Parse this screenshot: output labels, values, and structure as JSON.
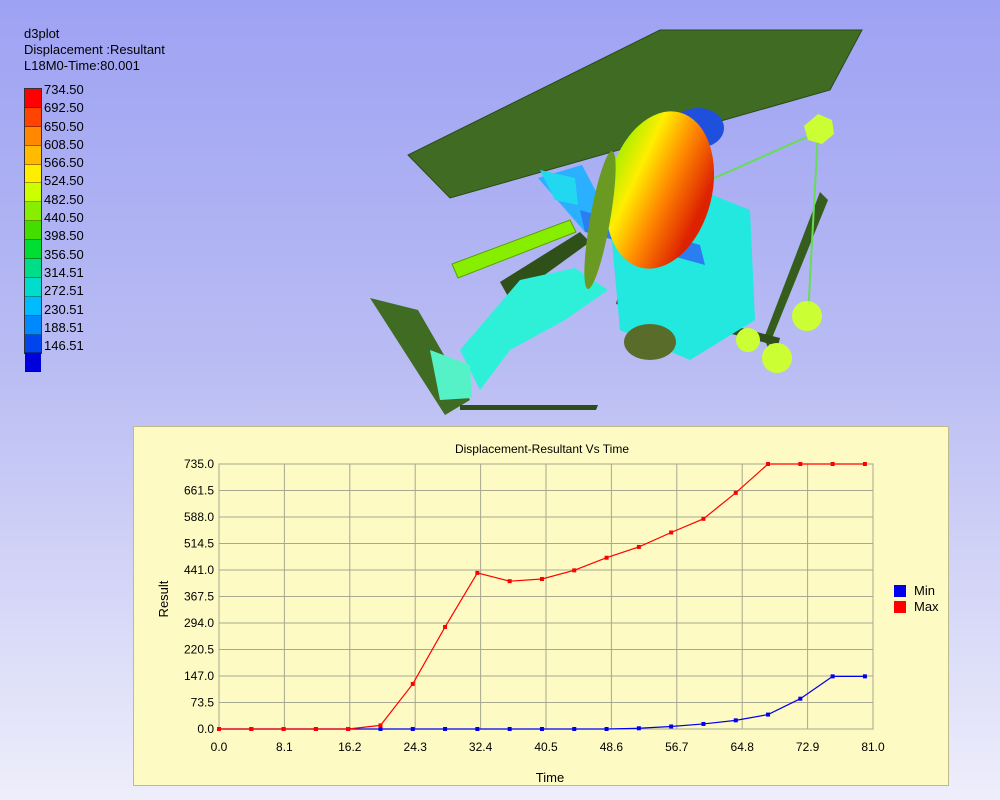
{
  "viewer": {
    "title": "d3plot",
    "result_type": "Displacement :Resultant",
    "state": "L18M0-Time:80.001"
  },
  "fringe_legend": {
    "values": [
      "734.50",
      "692.50",
      "650.50",
      "608.50",
      "566.50",
      "524.50",
      "482.50",
      "440.50",
      "398.50",
      "356.50",
      "314.51",
      "272.51",
      "230.51",
      "188.51",
      "146.51"
    ],
    "colors": [
      "#ff0000",
      "#ff4400",
      "#ff8800",
      "#ffbb00",
      "#ffee00",
      "#ccff00",
      "#88ee00",
      "#44dd00",
      "#00dd33",
      "#00dd88",
      "#00ddcc",
      "#00bbff",
      "#0088ff",
      "#0044ee",
      "#0000dd"
    ]
  },
  "chart_data": {
    "type": "line",
    "title": "Displacement-Resultant Vs Time",
    "xlabel": "Time",
    "ylabel": "Result",
    "xlim": [
      0.0,
      81.0
    ],
    "ylim": [
      0.0,
      735.0
    ],
    "x_ticks": [
      "0.0",
      "8.1",
      "16.2",
      "24.3",
      "32.4",
      "40.5",
      "48.6",
      "56.7",
      "64.8",
      "72.9",
      "81.0"
    ],
    "y_ticks": [
      "0.0",
      "73.5",
      "147.0",
      "220.5",
      "294.0",
      "367.5",
      "441.0",
      "514.5",
      "588.0",
      "661.5",
      "735.0"
    ],
    "x": [
      0,
      4,
      8,
      12,
      16,
      20,
      24,
      28,
      32,
      36,
      40,
      44,
      48,
      52,
      56,
      60,
      64,
      68,
      72,
      76,
      80
    ],
    "series": [
      {
        "name": "Min",
        "color": "#0000ee",
        "values": [
          0,
          0,
          0,
          0,
          0,
          0,
          0,
          0,
          0,
          0,
          0,
          0,
          0,
          2,
          7,
          14,
          24,
          40,
          84,
          146,
          146
        ]
      },
      {
        "name": "Max",
        "color": "#ff0000",
        "values": [
          0,
          0,
          0,
          0,
          0,
          10,
          125,
          283,
          433,
          410,
          416,
          440,
          475,
          505,
          545,
          583,
          655,
          735,
          735,
          735,
          735
        ]
      }
    ],
    "legend": [
      "Min",
      "Max"
    ],
    "grid": true
  }
}
